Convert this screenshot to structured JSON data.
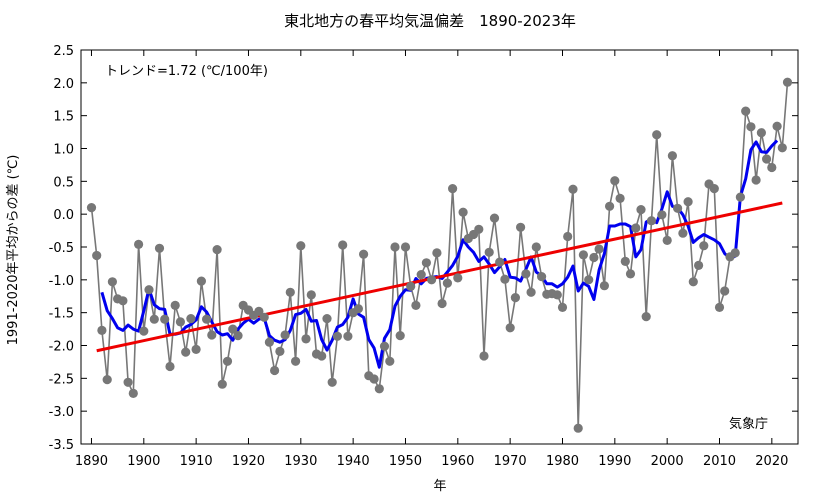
{
  "chart_data": {
    "type": "line",
    "title": "東北地方の春平均気温偏差　1890-2023年",
    "xlabel": "年",
    "ylabel": "1991-2020年平均からの差 (℃)",
    "xlim": [
      1888,
      2025
    ],
    "ylim": [
      -3.5,
      2.5
    ],
    "x_ticks": [
      1890,
      1900,
      1910,
      1920,
      1930,
      1940,
      1950,
      1960,
      1970,
      1980,
      1990,
      2000,
      2010,
      2020
    ],
    "y_ticks": [
      2.5,
      2.0,
      1.5,
      1.0,
      0.5,
      0.0,
      -0.5,
      -1.0,
      -1.5,
      -2.0,
      -2.5,
      -3.0,
      -3.5
    ],
    "y_tick_labels": [
      "2.5",
      "2.0",
      "1.5",
      "1.0",
      "0.5",
      "0.0",
      "-0.5",
      "-1.0",
      "-1.5",
      "-2.0",
      "-2.5",
      "-3.0",
      "-3.5"
    ],
    "grid": false,
    "trend_label": "トレンド=1.72 (℃/100年)",
    "source_label": "気象庁",
    "colors": {
      "annual": "#777777",
      "marker": "#777777",
      "smoothed": "#0000ee",
      "trend": "#ee0000"
    },
    "annual": {
      "x": [
        1890,
        1891,
        1892,
        1893,
        1894,
        1895,
        1896,
        1897,
        1898,
        1899,
        1900,
        1901,
        1902,
        1903,
        1904,
        1905,
        1906,
        1907,
        1908,
        1909,
        1910,
        1911,
        1912,
        1913,
        1914,
        1915,
        1916,
        1917,
        1918,
        1919,
        1920,
        1921,
        1922,
        1923,
        1924,
        1925,
        1926,
        1927,
        1928,
        1929,
        1930,
        1931,
        1932,
        1933,
        1934,
        1935,
        1936,
        1937,
        1938,
        1939,
        1940,
        1941,
        1942,
        1943,
        1944,
        1945,
        1946,
        1947,
        1948,
        1949,
        1950,
        1951,
        1952,
        1953,
        1954,
        1955,
        1956,
        1957,
        1958,
        1959,
        1960,
        1961,
        1962,
        1963,
        1964,
        1965,
        1966,
        1967,
        1968,
        1969,
        1970,
        1971,
        1972,
        1973,
        1974,
        1975,
        1976,
        1977,
        1978,
        1979,
        1980,
        1981,
        1982,
        1983,
        1984,
        1985,
        1986,
        1987,
        1988,
        1989,
        1990,
        1991,
        1992,
        1993,
        1994,
        1995,
        1996,
        1997,
        1998,
        1999,
        2000,
        2001,
        2002,
        2003,
        2004,
        2005,
        2006,
        2007,
        2008,
        2009,
        2010,
        2011,
        2012,
        2013,
        2014,
        2015,
        2016,
        2017,
        2018,
        2019,
        2020,
        2021,
        2022,
        2023
      ],
      "y": [
        0.1,
        -0.63,
        -1.77,
        -2.52,
        -1.03,
        -1.29,
        -1.32,
        -2.56,
        -2.73,
        -0.46,
        -1.78,
        -1.15,
        -1.6,
        -0.52,
        -1.6,
        -2.32,
        -1.39,
        -1.64,
        -2.1,
        -1.59,
        -2.06,
        -1.02,
        -1.6,
        -1.84,
        -0.54,
        -2.59,
        -2.24,
        -1.75,
        -1.85,
        -1.39,
        -1.46,
        -1.54,
        -1.48,
        -1.57,
        -1.95,
        -2.38,
        -2.09,
        -1.84,
        -1.19,
        -2.24,
        -0.48,
        -1.9,
        -1.23,
        -2.13,
        -2.16,
        -1.59,
        -2.56,
        -1.86,
        -0.47,
        -1.86,
        -1.5,
        -1.44,
        -0.61,
        -2.46,
        -2.51,
        -2.66,
        -2.01,
        -2.24,
        -0.5,
        -1.85,
        -0.5,
        -1.1,
        -1.39,
        -0.92,
        -0.74,
        -1.0,
        -0.59,
        -1.36,
        -1.05,
        0.39,
        -0.97,
        0.03,
        -0.37,
        -0.31,
        -0.23,
        -2.16,
        -0.58,
        -0.06,
        -0.73,
        -0.99,
        -1.73,
        -1.27,
        -0.2,
        -0.91,
        -1.19,
        -0.5,
        -0.95,
        -1.22,
        -1.21,
        -1.23,
        -1.42,
        -0.34,
        0.38,
        -3.26,
        -0.62,
        -1.0,
        -0.66,
        -0.53,
        -1.09,
        0.12,
        0.51,
        0.24,
        -0.72,
        -0.91,
        -0.21,
        0.07,
        -1.56,
        -0.1,
        1.21,
        -0.01,
        -0.4,
        0.89,
        0.09,
        -0.29,
        0.19,
        -1.03,
        -0.78,
        -0.48,
        0.46,
        0.39,
        -1.42,
        -1.17,
        -0.65,
        -0.59,
        0.26,
        1.57,
        1.33,
        0.52,
        1.24,
        0.84,
        0.71,
        1.34,
        1.01,
        2.01
      ]
    },
    "smoothed": {
      "x": [
        1892,
        1893,
        1894,
        1895,
        1896,
        1897,
        1898,
        1899,
        1900,
        1901,
        1902,
        1903,
        1904,
        1905,
        1906,
        1907,
        1908,
        1909,
        1910,
        1911,
        1912,
        1913,
        1914,
        1915,
        1916,
        1917,
        1918,
        1919,
        1920,
        1921,
        1922,
        1923,
        1924,
        1925,
        1926,
        1927,
        1928,
        1929,
        1930,
        1931,
        1932,
        1933,
        1934,
        1935,
        1936,
        1937,
        1938,
        1939,
        1940,
        1941,
        1942,
        1943,
        1944,
        1945,
        1946,
        1947,
        1948,
        1949,
        1950,
        1951,
        1952,
        1953,
        1954,
        1955,
        1956,
        1957,
        1958,
        1959,
        1960,
        1961,
        1962,
        1963,
        1964,
        1965,
        1966,
        1967,
        1968,
        1969,
        1970,
        1971,
        1972,
        1973,
        1974,
        1975,
        1976,
        1977,
        1978,
        1979,
        1980,
        1981,
        1982,
        1983,
        1984,
        1985,
        1986,
        1987,
        1988,
        1989,
        1990,
        1991,
        1992,
        1993,
        1994,
        1995,
        1996,
        1997,
        1998,
        1999,
        2000,
        2001,
        2002,
        2003,
        2004,
        2005,
        2006,
        2007,
        2008,
        2009,
        2010,
        2011,
        2012,
        2013,
        2014,
        2015,
        2016,
        2017,
        2018,
        2019,
        2020,
        2021
      ],
      "y": [
        -1.19,
        -1.47,
        -1.59,
        -1.73,
        -1.77,
        -1.69,
        -1.75,
        -1.78,
        -1.47,
        -1.14,
        -1.38,
        -1.44,
        -1.45,
        -1.83,
        -1.83,
        -1.81,
        -1.72,
        -1.68,
        -1.61,
        -1.41,
        -1.49,
        -1.64,
        -1.79,
        -1.84,
        -1.82,
        -1.92,
        -1.75,
        -1.66,
        -1.6,
        -1.66,
        -1.6,
        -1.58,
        -1.85,
        -1.92,
        -1.95,
        -1.91,
        -1.77,
        -1.53,
        -1.51,
        -1.45,
        -1.63,
        -1.62,
        -1.91,
        -2.07,
        -1.92,
        -1.72,
        -1.68,
        -1.57,
        -1.29,
        -1.52,
        -1.57,
        -1.91,
        -2.04,
        -2.33,
        -1.89,
        -1.76,
        -1.4,
        -1.25,
        -1.15,
        -1.16,
        -0.98,
        -1.06,
        -0.98,
        -0.96,
        -0.95,
        -0.98,
        -0.88,
        -0.78,
        -0.64,
        -0.39,
        -0.5,
        -0.58,
        -0.72,
        -0.65,
        -0.76,
        -0.89,
        -0.8,
        -0.69,
        -0.96,
        -0.97,
        -1.02,
        -0.84,
        -0.65,
        -0.88,
        -0.94,
        -1.06,
        -1.06,
        -1.11,
        -1.06,
        -0.96,
        -0.79,
        -1.17,
        -1.05,
        -1.1,
        -1.3,
        -0.85,
        -0.6,
        -0.18,
        -0.18,
        -0.15,
        -0.15,
        -0.19,
        -0.65,
        -0.54,
        -0.12,
        -0.07,
        -0.13,
        0.08,
        0.34,
        0.12,
        0.1,
        -0.01,
        -0.18,
        -0.43,
        -0.36,
        -0.31,
        -0.35,
        -0.39,
        -0.45,
        -0.6,
        -0.67,
        -0.64,
        0.27,
        0.54,
        0.98,
        1.1,
        0.95,
        0.94,
        1.04,
        1.12
      ]
    },
    "trend": {
      "x": [
        1891,
        2022
      ],
      "y": [
        -2.08,
        0.17
      ]
    }
  }
}
